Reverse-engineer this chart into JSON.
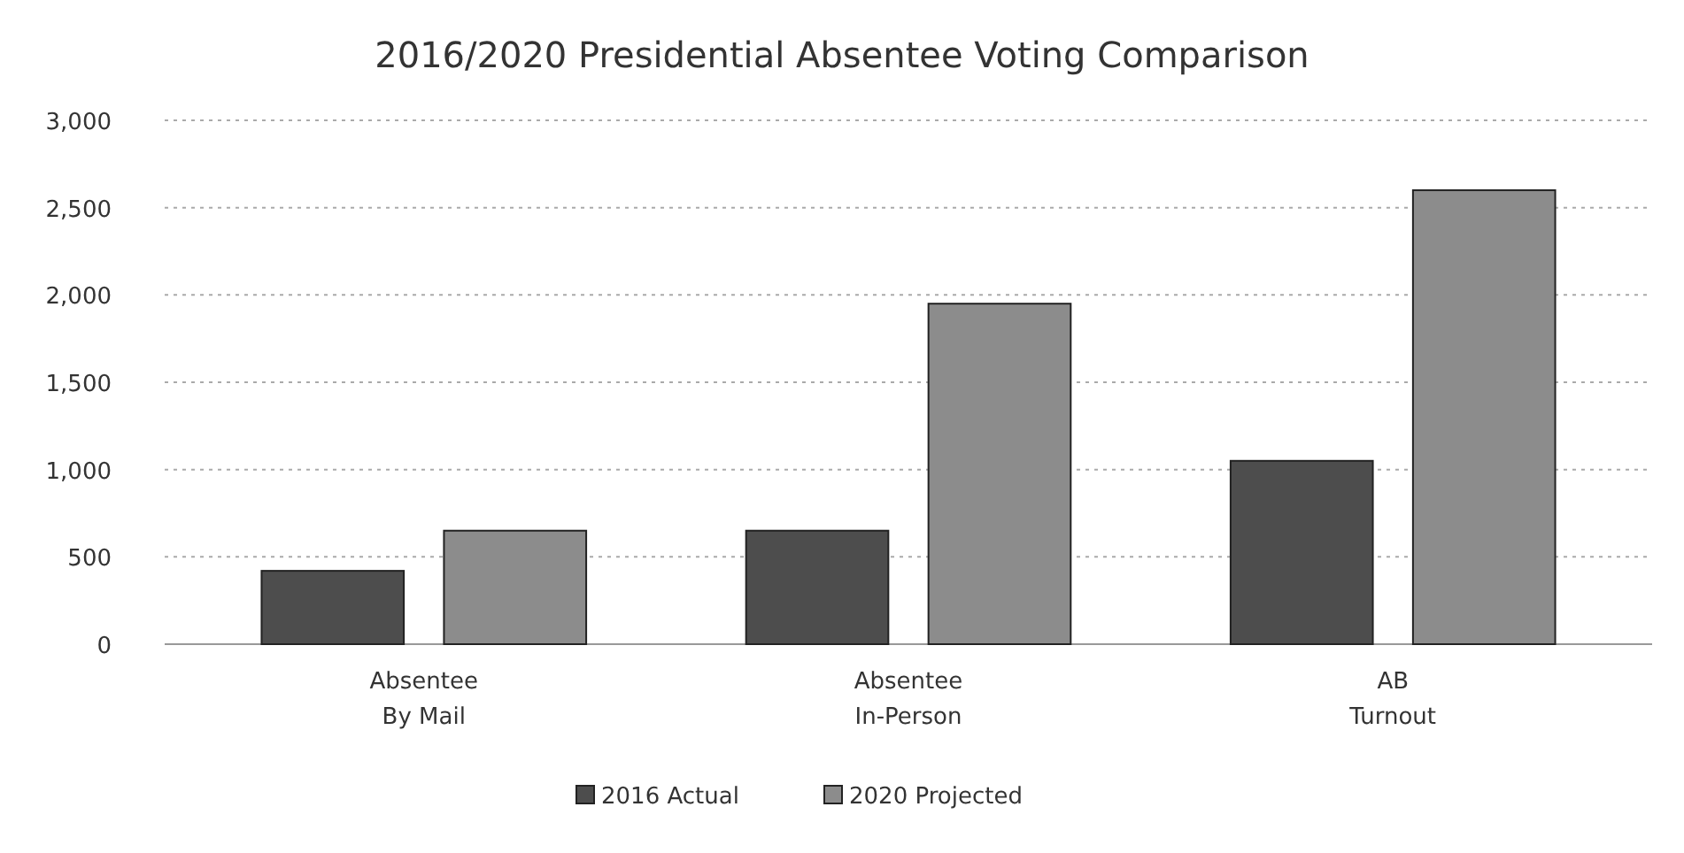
{
  "chart_data": {
    "type": "bar",
    "title": "2016/2020 Presidential Absentee Voting Comparison",
    "categories": [
      "Absentee\nBy Mail",
      "Absentee\nIn-Person",
      "AB\nTurnout"
    ],
    "series": [
      {
        "name": "2016 Actual",
        "color": "#4d4d4d",
        "values": [
          420,
          650,
          1050
        ]
      },
      {
        "name": "2020 Projected",
        "color": "#8c8c8c",
        "values": [
          650,
          1950,
          2600
        ]
      }
    ],
    "ylim": [
      0,
      3000
    ],
    "yticks": [
      {
        "value": 0,
        "label": "0"
      },
      {
        "value": 500,
        "label": "500"
      },
      {
        "value": 1000,
        "label": "1,000"
      },
      {
        "value": 1500,
        "label": "1,500"
      },
      {
        "value": 2000,
        "label": "2,000"
      },
      {
        "value": 2500,
        "label": "2,500"
      },
      {
        "value": 3000,
        "label": "3,000"
      }
    ],
    "grid": "y",
    "legend": "bottom"
  }
}
